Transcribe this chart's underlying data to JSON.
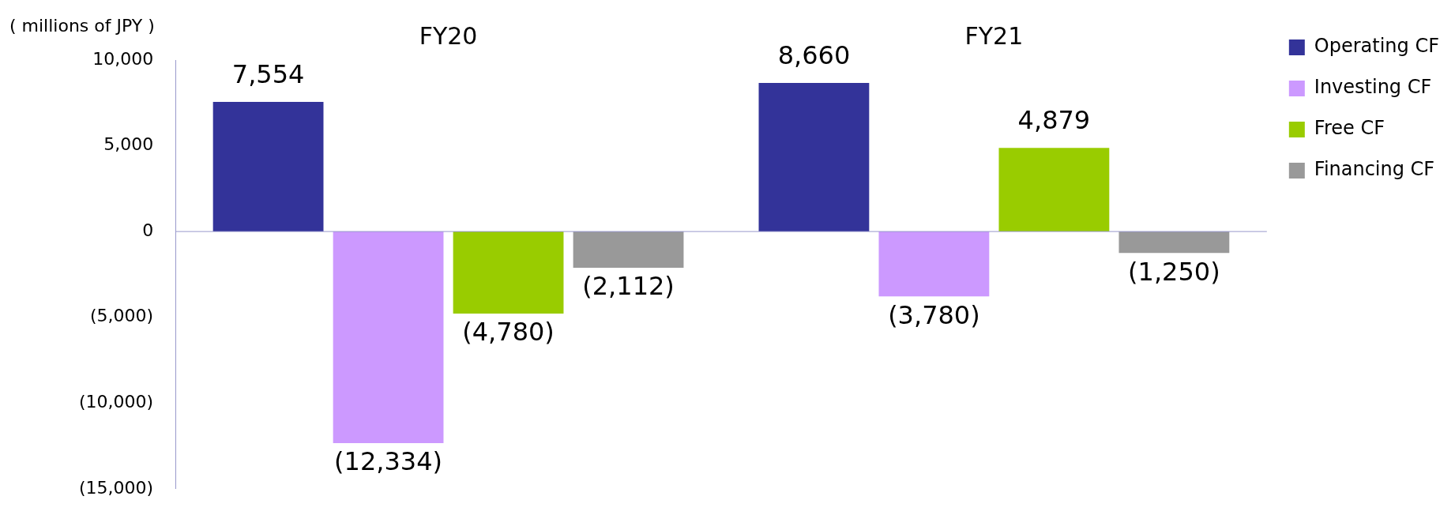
{
  "chart_data": {
    "type": "bar",
    "ylabel": "( millions of JPY )",
    "categories": [
      "FY20",
      "FY21"
    ],
    "series": [
      {
        "name": "Operating CF",
        "color": "#333399",
        "values": [
          7554,
          8660
        ],
        "value_labels": [
          "7,554",
          "8,660"
        ]
      },
      {
        "name": "Investing CF",
        "color": "#cc99ff",
        "values": [
          -12334,
          -3780
        ],
        "value_labels": [
          "(12,334)",
          "(3,780)"
        ]
      },
      {
        "name": "Free CF",
        "color": "#99cc00",
        "values": [
          -4780,
          4879
        ],
        "value_labels": [
          "(4,780)",
          "4,879"
        ]
      },
      {
        "name": "Financing CF",
        "color": "#999999",
        "values": [
          -2112,
          -1250
        ],
        "value_labels": [
          "(2,112)",
          "(1,250)"
        ]
      }
    ],
    "ylim": [
      -15000,
      10000
    ],
    "yticks": [
      {
        "value": 10000,
        "label": "10,000"
      },
      {
        "value": 5000,
        "label": "5,000"
      },
      0,
      {
        "value": -5000,
        "label": "(5,000)"
      },
      {
        "value": -10000,
        "label": "(10,000)"
      },
      {
        "value": -15000,
        "label": "(15,000)"
      }
    ],
    "ref_lines": [
      {
        "axis": "y",
        "value": 0,
        "color": "#9999cc"
      }
    ],
    "grid": false,
    "legend": "top right"
  }
}
